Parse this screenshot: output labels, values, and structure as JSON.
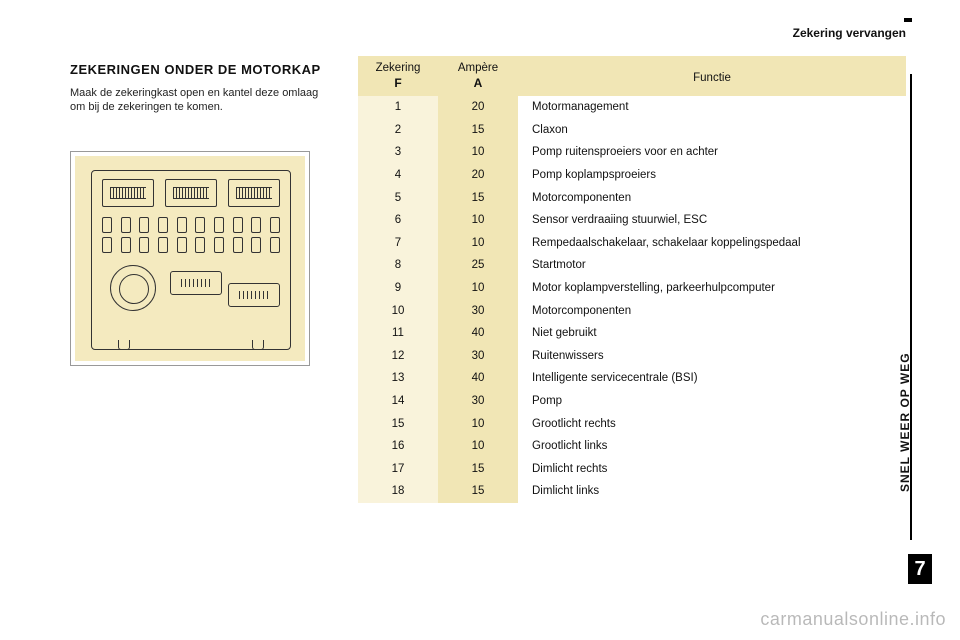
{
  "header": {
    "section_title": "Zekering vervangen"
  },
  "left": {
    "heading": "ZEKERINGEN ONDER DE MOTORKAP",
    "desc": "Maak de zekeringkast open en kantel deze omlaag om bij de zekeringen te komen."
  },
  "table": {
    "head": {
      "col1_top": "Zekering",
      "col1_sub": "F",
      "col2_top": "Ampère",
      "col2_sub": "A",
      "col3": "Functie"
    },
    "rows": [
      {
        "f": "1",
        "a": "20",
        "d": "Motormanagement"
      },
      {
        "f": "2",
        "a": "15",
        "d": "Claxon"
      },
      {
        "f": "3",
        "a": "10",
        "d": "Pomp ruitensproeiers voor en achter"
      },
      {
        "f": "4",
        "a": "20",
        "d": "Pomp koplampsproeiers"
      },
      {
        "f": "5",
        "a": "15",
        "d": "Motorcomponenten"
      },
      {
        "f": "6",
        "a": "10",
        "d": "Sensor verdraaiing stuurwiel, ESC"
      },
      {
        "f": "7",
        "a": "10",
        "d": "Rempedaalschakelaar, schakelaar koppelingspedaal"
      },
      {
        "f": "8",
        "a": "25",
        "d": "Startmotor"
      },
      {
        "f": "9",
        "a": "10",
        "d": "Motor koplampverstelling, parkeerhulpcomputer"
      },
      {
        "f": "10",
        "a": "30",
        "d": "Motorcomponenten"
      },
      {
        "f": "11",
        "a": "40",
        "d": "Niet gebruikt"
      },
      {
        "f": "12",
        "a": "30",
        "d": "Ruitenwissers"
      },
      {
        "f": "13",
        "a": "40",
        "d": "Intelligente servicecentrale (BSI)"
      },
      {
        "f": "14",
        "a": "30",
        "d": "Pomp"
      },
      {
        "f": "15",
        "a": "10",
        "d": "Grootlicht rechts"
      },
      {
        "f": "16",
        "a": "10",
        "d": "Grootlicht links"
      },
      {
        "f": "17",
        "a": "15",
        "d": "Dimlicht rechts"
      },
      {
        "f": "18",
        "a": "15",
        "d": "Dimlicht links"
      }
    ],
    "colors": {
      "head_bg": "#f1e6b5",
      "fcol_bg": "#f9f3db",
      "acol_bg": "#f1e6b5",
      "diagram_bg": "#f4eabf"
    }
  },
  "side": {
    "label": "SNEL WEER OP WEG",
    "number": "7"
  },
  "watermark": "carmanualsonline.info"
}
